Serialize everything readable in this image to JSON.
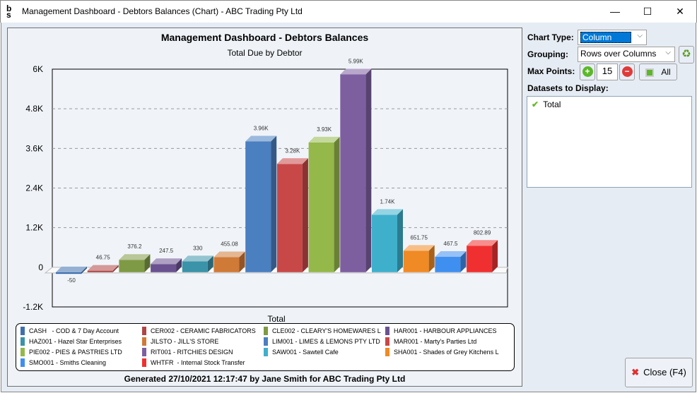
{
  "window": {
    "title": "Management Dashboard - Debtors Balances (Chart) - ABC Trading Pty Ltd",
    "logo": "sb",
    "minimize": "—",
    "maximize": "☐",
    "close": "✕"
  },
  "chart_data": {
    "type": "bar",
    "title": "Management Dashboard - Debtors Balances",
    "subtitle": "Total Due by Debtor",
    "xlabel": "Total",
    "ylabel": "",
    "ylim": [
      -1200,
      6000
    ],
    "yticks": [
      "6K",
      "4.8K",
      "3.6K",
      "2.4K",
      "1.2K",
      "0",
      "-1.2K"
    ],
    "ytick_values": [
      6000,
      4800,
      3600,
      2400,
      1200,
      0,
      -1200
    ],
    "grid": true,
    "legend": "bottom",
    "categories": [
      "CASH   - COD & 7 Day Account",
      "CER002 - CERAMIC FABRICATORS",
      "CLE002 - CLEARY'S HOMEWARES L",
      "HAR001 - HARBOUR APPLIANCES",
      "HAZ001 - Hazel Star Enterprises",
      "JILSTO - JILL'S STORE",
      "LIM001 - LIMES & LEMONS PTY LTD",
      "MAR001 - Marty's Parties Ltd",
      "PIE002 - PIES & PASTRIES LTD",
      "RIT001 - RITCHIES DESIGN",
      "SAW001 - Sawtell Cafe",
      "SHA001 - Shades of Grey Kitchens L",
      "SMO001 - Smiths Cleaning",
      "WHTFR  - Internal Stock Transfer"
    ],
    "values": [
      -50,
      46.75,
      376.2,
      247.5,
      330,
      455.08,
      3960,
      3280,
      3930,
      5990,
      1740,
      651.75,
      467.5,
      802.89
    ],
    "data_labels": [
      "-50",
      "46.75",
      "376.2",
      "247.5",
      "330",
      "455.08",
      "3.96K",
      "3.28K",
      "3.93K",
      "5.99K",
      "1.74K",
      "651.75",
      "467.5",
      "802.89"
    ],
    "colors": [
      "#3f6faf",
      "#b04545",
      "#7f9a45",
      "#6a5290",
      "#3a93a8",
      "#d07a38",
      "#4a7fc0",
      "#c84848",
      "#94b84a",
      "#7d5fa0",
      "#3fb0cc",
      "#f08a25",
      "#3f8ff0",
      "#f03030"
    ]
  },
  "footer": "Generated 27/10/2021 12:17:47 by Jane Smith for ABC Trading Pty Ltd",
  "controls": {
    "chart_type_label": "Chart Type:",
    "chart_type_value": "Column",
    "grouping_label": "Grouping:",
    "grouping_value": "Rows over Columns",
    "max_points_label": "Max Points:",
    "max_points_value": "15",
    "all_label": "All",
    "datasets_label": "Datasets to Display:",
    "datasets": [
      "Total"
    ],
    "close_label": "Close (F4)"
  }
}
